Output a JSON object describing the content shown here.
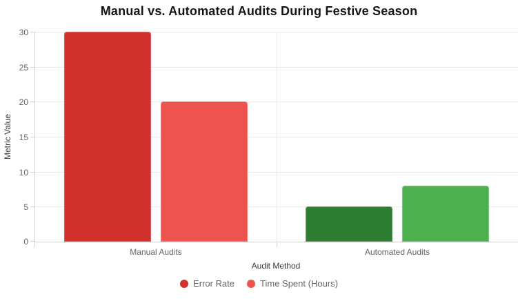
{
  "chart_data": {
    "type": "bar",
    "title": "Manual vs. Automated Audits During Festive Season",
    "xlabel": "Audit Method",
    "ylabel": "Metric Value",
    "categories": [
      "Manual Audits",
      "Automated Audits"
    ],
    "series": [
      {
        "name": "Error Rate",
        "values": [
          30,
          5
        ],
        "bar_colors": [
          "#d0312d",
          "#2e7d32"
        ],
        "legend_color": "#d0312d"
      },
      {
        "name": "Time Spent (Hours)",
        "values": [
          20,
          8
        ],
        "bar_colors": [
          "#ef5350",
          "#4caf50"
        ],
        "legend_color": "#ef5350"
      }
    ],
    "ylim": [
      0,
      30
    ],
    "yticks": [
      0,
      5,
      10,
      15,
      20,
      25,
      30
    ],
    "grid": true,
    "legend_position": "bottom",
    "colors": {
      "grid_line": "#e9e9e9",
      "axis_line": "#d2d2d2",
      "tick_text": "#666666",
      "title_text": "#151515",
      "axis_title_text": "#3a3a3a",
      "background": "#ffffff"
    }
  }
}
